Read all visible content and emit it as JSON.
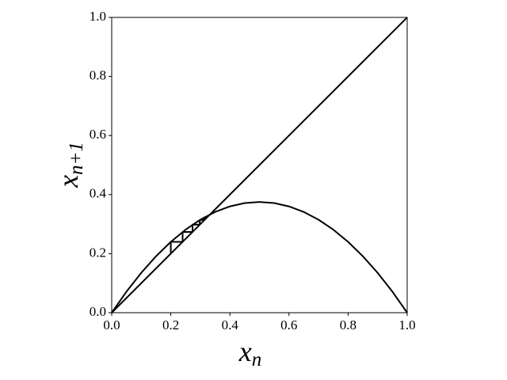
{
  "chart_data": {
    "type": "line",
    "xlabel": {
      "text": "x",
      "subscript": "n"
    },
    "ylabel": {
      "text": "x",
      "subscript": "n+1"
    },
    "xlim": [
      0,
      1
    ],
    "ylim": [
      0,
      1
    ],
    "xticks": [
      {
        "value": 0,
        "label": "0.0"
      },
      0.2,
      0.4,
      0.6,
      0.8,
      {
        "value": 1,
        "label": "1.0"
      }
    ],
    "yticks": [
      {
        "value": 0,
        "label": "0.0"
      },
      0.2,
      0.4,
      0.6,
      0.8,
      {
        "value": 1,
        "label": "1.0"
      }
    ],
    "grid": false,
    "series": [
      {
        "color": "#000000",
        "x": [
          0,
          0.05,
          0.1,
          0.15,
          0.2,
          0.25,
          0.3,
          0.35,
          0.4,
          0.45,
          0.5,
          0.55,
          0.6,
          0.65,
          0.7,
          0.75,
          0.8,
          0.85,
          0.9,
          0.95,
          1
        ],
        "values": [
          0,
          0.07125,
          0.135,
          0.19125,
          0.24,
          0.28125,
          0.315,
          0.34125,
          0.36,
          0.37125,
          0.375,
          0.37125,
          0.36,
          0.34125,
          0.315,
          0.28125,
          0.24,
          0.19125,
          0.135,
          0.07125,
          0
        ]
      },
      {
        "color": "#000000",
        "x": [
          0,
          1
        ],
        "values": [
          0,
          1
        ]
      },
      {
        "color": "#000000",
        "x": [
          0.2,
          0.2,
          0.24,
          0.24,
          0.2736,
          0.2736,
          0.2981,
          0.2981,
          0.3139,
          0.3139,
          0.323
        ],
        "values": [
          0.2,
          0.24,
          0.24,
          0.2736,
          0.2736,
          0.2981,
          0.2981,
          0.3139,
          0.3139,
          0.323,
          0.323
        ]
      }
    ]
  }
}
